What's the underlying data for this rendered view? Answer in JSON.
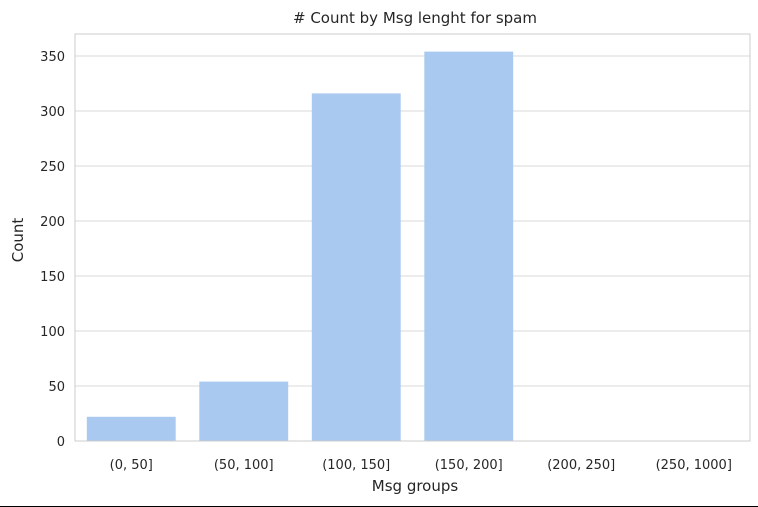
{
  "chart_data": {
    "type": "bar",
    "title": "# Count by Msg lenght for spam",
    "xlabel": "Msg groups",
    "ylabel": "Count",
    "categories": [
      "(0, 50]",
      "(50, 100]",
      "(100, 150]",
      "(150, 200]",
      "(200, 250]",
      "(250, 1000]"
    ],
    "values": [
      22,
      54,
      316,
      354,
      0,
      0
    ],
    "ylim": [
      0,
      370
    ],
    "yticks": [
      0,
      50,
      100,
      150,
      200,
      250,
      300,
      350
    ],
    "grid": true,
    "legend": "none",
    "bar_color": "#a9c9f0",
    "grid_color": "#d9d9d9",
    "text_color": "#262626"
  }
}
